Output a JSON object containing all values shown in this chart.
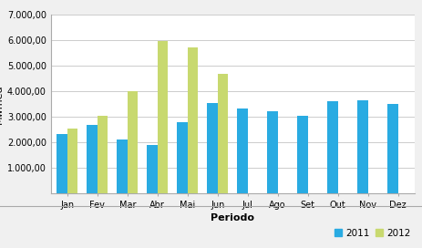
{
  "categories": [
    "Jan",
    "Fev",
    "Mar",
    "Abr",
    "Mai",
    "Jun",
    "Jul",
    "Ago",
    "Set",
    "Out",
    "Nov",
    "Dez"
  ],
  "values_2011": [
    2340,
    2680,
    2120,
    1900,
    2780,
    3540,
    3330,
    3230,
    3040,
    3620,
    3650,
    3510
  ],
  "values_2012": [
    2560,
    3060,
    4010,
    5960,
    5730,
    4700,
    null,
    null,
    null,
    null,
    null,
    null
  ],
  "color_2011": "#29ABE2",
  "color_2012": "#C8D96F",
  "xlabel": "Periodo",
  "ylim": [
    0,
    7000
  ],
  "yticks": [
    1000,
    2000,
    3000,
    4000,
    5000,
    6000,
    7000
  ],
  "ytick_labels": [
    "1.000,00",
    "2.000,00",
    "3.000,00",
    "4.000,00",
    "5.000,00",
    "6.000,00",
    "7.000,00"
  ],
  "legend_labels": [
    "2011",
    "2012"
  ],
  "background_color": "#F0F0F0",
  "plot_bg_color": "#FFFFFF",
  "grid_color": "#CCCCCC",
  "bar_width": 0.35,
  "xlabel_fontsize": 8,
  "ylabel_fontsize": 8,
  "tick_fontsize": 7,
  "legend_fontsize": 7.5
}
